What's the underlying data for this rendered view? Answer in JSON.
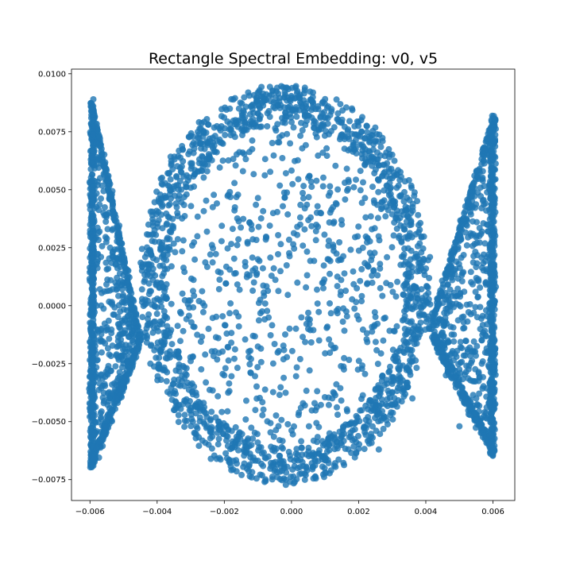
{
  "chart_data": {
    "type": "scatter",
    "title": "Rectangle Spectral Embedding: v0, v5",
    "xlabel": "",
    "ylabel": "",
    "xlim": [
      -0.00655,
      0.00665
    ],
    "ylim": [
      -0.0084,
      0.0102
    ],
    "xticks": [
      -0.006,
      -0.004,
      -0.002,
      0.0,
      0.002,
      0.004,
      0.006
    ],
    "xtick_labels": [
      "−0.006",
      "−0.004",
      "−0.002",
      "0.000",
      "0.002",
      "0.004",
      "0.006"
    ],
    "yticks": [
      -0.0075,
      -0.005,
      -0.0025,
      0.0,
      0.0025,
      0.005,
      0.0075,
      0.01
    ],
    "ytick_labels": [
      "−0.0075",
      "−0.0050",
      "−0.0025",
      "0.0000",
      "0.0025",
      "0.0050",
      "0.0075",
      "0.0100"
    ],
    "grid": false,
    "legend": "none",
    "point_color": "#1f77b4",
    "point_alpha": 0.8,
    "structure": {
      "left_lobe_x": [
        -0.00598,
        -0.0045
      ],
      "left_lobe_top_y": 0.0089,
      "left_lobe_bottom_y": -0.0069,
      "center_ellipse_x": [
        -0.0045,
        0.0041
      ],
      "center_ellipse_top_y": 0.0094,
      "center_ellipse_bottom_y": -0.0076,
      "right_lobe_x": [
        0.0041,
        0.00605
      ],
      "right_lobe_top_y": 0.0081,
      "right_lobe_bottom_y": -0.0064,
      "crossing_points": [
        [
          -0.0045,
          -0.0015
        ],
        [
          0.0041,
          -0.001
        ]
      ]
    },
    "sample_points": [
      [
        -0.0059,
        0.0089
      ],
      [
        -0.0059,
        0.008
      ],
      [
        -0.0058,
        0.007
      ],
      [
        -0.0057,
        0.0055
      ],
      [
        -0.0056,
        0.004
      ],
      [
        -0.0054,
        0.0025
      ],
      [
        -0.0052,
        0.0012
      ],
      [
        -0.0049,
        -0.0002
      ],
      [
        -0.0045,
        -0.0015
      ],
      [
        -0.0049,
        -0.0028
      ],
      [
        -0.0052,
        -0.004
      ],
      [
        -0.0055,
        -0.0052
      ],
      [
        -0.0058,
        -0.0062
      ],
      [
        -0.0059,
        -0.0069
      ],
      [
        -0.0058,
        0.0
      ],
      [
        -0.004,
        0.001
      ],
      [
        -0.0034,
        0.004
      ],
      [
        -0.0025,
        0.007
      ],
      [
        -0.001,
        0.0088
      ],
      [
        0.0004,
        0.0094
      ],
      [
        0.0018,
        0.0085
      ],
      [
        0.003,
        0.0055
      ],
      [
        0.0038,
        0.002
      ],
      [
        0.0041,
        -0.001
      ],
      [
        0.0036,
        -0.004
      ],
      [
        0.0026,
        -0.0062
      ],
      [
        0.001,
        -0.0072
      ],
      [
        -0.0008,
        -0.0076
      ],
      [
        -0.0024,
        -0.0066
      ],
      [
        -0.0035,
        -0.0045
      ],
      [
        -0.0042,
        -0.0025
      ],
      [
        -0.001,
        0.002
      ],
      [
        0.0005,
        -0.001
      ],
      [
        0.0015,
        0.0035
      ],
      [
        -0.002,
        -0.003
      ],
      [
        0.0046,
        0.0012
      ],
      [
        0.0052,
        0.0035
      ],
      [
        0.0057,
        0.0058
      ],
      [
        0.006,
        0.0081
      ],
      [
        0.006,
        0.002
      ],
      [
        0.0059,
        -0.002
      ],
      [
        0.0055,
        -0.004
      ],
      [
        0.005,
        -0.0052
      ],
      [
        0.006,
        -0.0064
      ],
      [
        0.0046,
        -0.003
      ]
    ]
  }
}
